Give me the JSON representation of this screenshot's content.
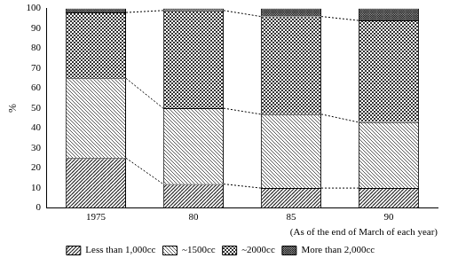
{
  "chart_data": {
    "type": "bar",
    "stacked": true,
    "grid": false,
    "legend": "bottom",
    "data_labels": false,
    "y_label": "%",
    "annotation": "(As of the end of March of each year)",
    "categories": [
      "1975",
      "80",
      "85",
      "90"
    ],
    "series": [
      {
        "name": "Less than 1,000cc",
        "color": "#222222",
        "values": [
          25,
          12,
          10,
          10
        ]
      },
      {
        "name": "~1500cc",
        "color": "#444444",
        "values": [
          40,
          38,
          37,
          33
        ]
      },
      {
        "name": "~2000cc",
        "color": "#333333",
        "values": [
          33,
          49,
          49,
          51
        ]
      },
      {
        "name": "More than 2,000cc",
        "color": "#111111",
        "values": [
          2,
          1,
          4,
          6
        ]
      }
    ],
    "ylim": [
      0,
      100
    ],
    "yticks": [
      0,
      10,
      20,
      30,
      40,
      50,
      60,
      70,
      80,
      90,
      100
    ]
  }
}
